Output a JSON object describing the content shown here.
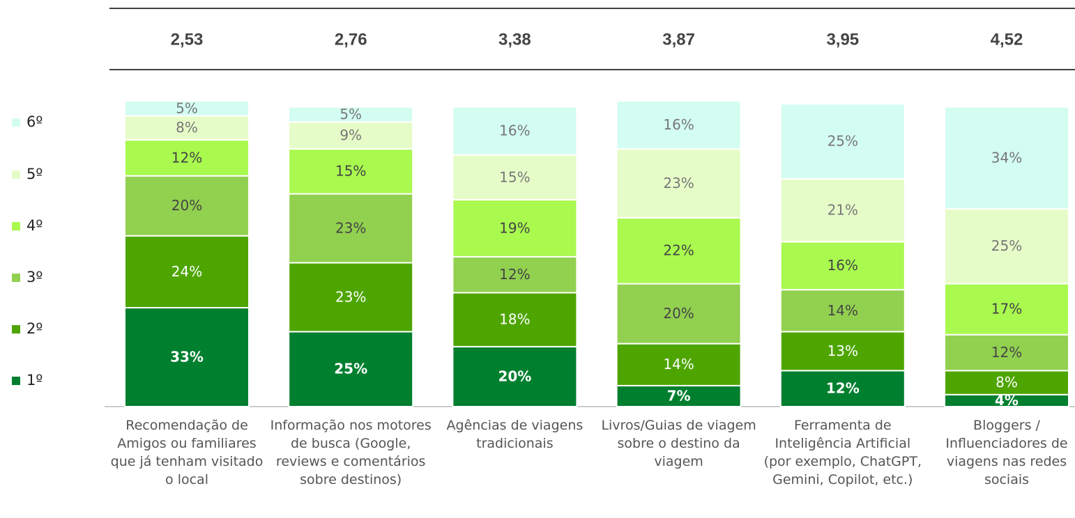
{
  "chart_data": {
    "type": "stacked_bar",
    "categories": [
      "Recomendação de Amigos ou familiares que já tenham visitado o local",
      "Informação nos motores de busca (Google, reviews e comentários sobre destinos)",
      "Agências de viagens tradicionais",
      "Livros/Guias de viagem sobre o destino da viagem",
      "Ferramenta de Inteligência Artificial (por exemplo, ChatGPT, Gemini, Copilot, etc.)",
      "Bloggers / Influenciadores de viagens nas redes sociais"
    ],
    "averages": {
      "values": [
        2.53,
        2.76,
        3.38,
        3.87,
        3.95,
        4.52
      ],
      "value_labels": [
        "2,53",
        "2,76",
        "3,38",
        "3,87",
        "3,95",
        "4,52"
      ]
    },
    "series": [
      {
        "name": "1º",
        "color": "#007f2f",
        "values": [
          33,
          25,
          20,
          7,
          12,
          4
        ],
        "value_labels": [
          "33%",
          "25%",
          "20%",
          "7%",
          "12%",
          "4%"
        ]
      },
      {
        "name": "2º",
        "color": "#4ea500",
        "values": [
          24,
          23,
          18,
          14,
          13,
          8
        ],
        "value_labels": [
          "24%",
          "23%",
          "18%",
          "14%",
          "13%",
          "8%"
        ]
      },
      {
        "name": "3º",
        "color": "#92d050",
        "values": [
          20,
          23,
          12,
          20,
          14,
          12
        ],
        "value_labels": [
          "20%",
          "23%",
          "12%",
          "20%",
          "14%",
          "12%"
        ]
      },
      {
        "name": "4º",
        "color": "#a9f94f",
        "values": [
          12,
          15,
          19,
          22,
          16,
          17
        ],
        "value_labels": [
          "12%",
          "15%",
          "19%",
          "22%",
          "16%",
          "17%"
        ]
      },
      {
        "name": "5º",
        "color": "#e6fcc8",
        "values": [
          8,
          9,
          15,
          23,
          21,
          25
        ],
        "value_labels": [
          "8%",
          "9%",
          "15%",
          "23%",
          "21%",
          "25%"
        ]
      },
      {
        "name": "6º",
        "color": "#d4fdf1",
        "values": [
          5,
          5,
          16,
          16,
          25,
          34
        ],
        "value_labels": [
          "5%",
          "5%",
          "16%",
          "16%",
          "25%",
          "34%"
        ]
      }
    ],
    "ylim": [
      0,
      102
    ]
  }
}
